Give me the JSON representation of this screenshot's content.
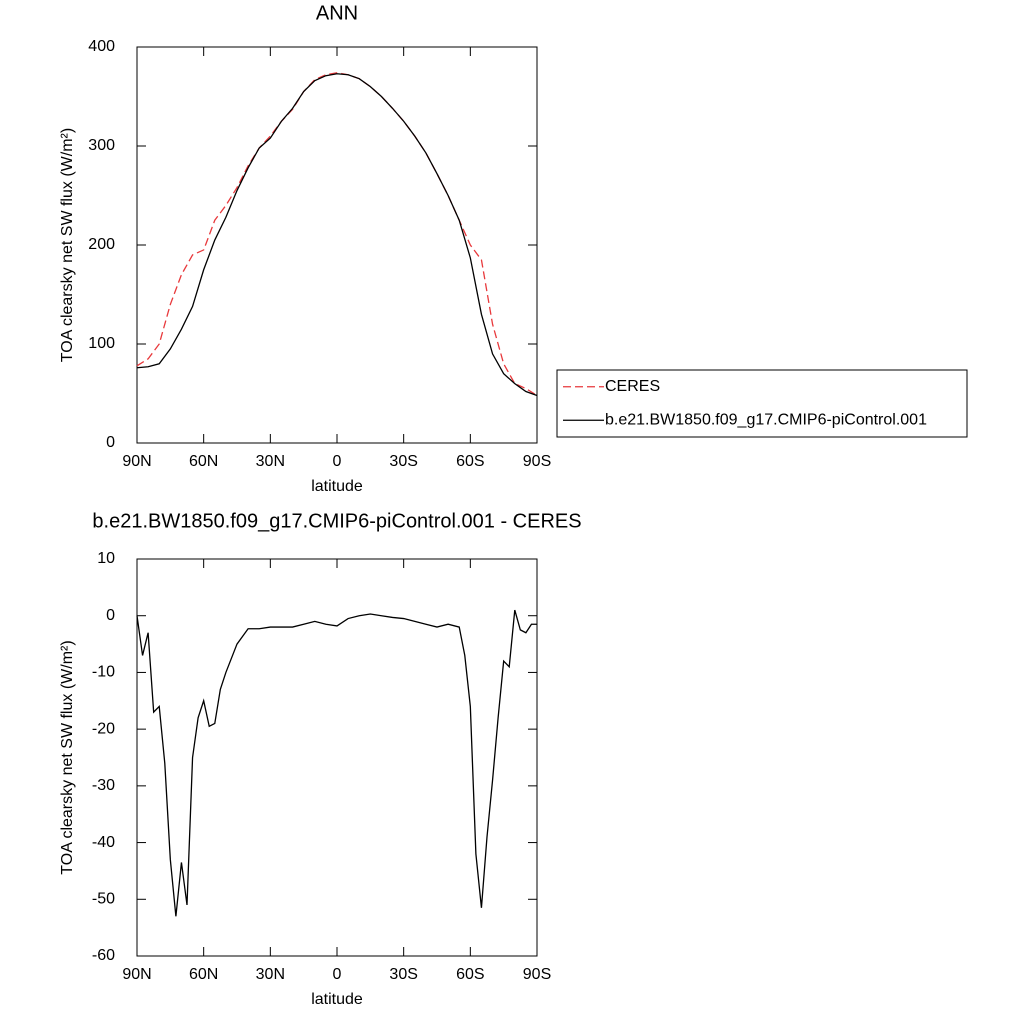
{
  "chart_data": [
    {
      "type": "line",
      "title": "ANN",
      "xlabel": "latitude",
      "ylabel": "TOA clearsky net SW flux (W/m²)",
      "x": [
        90,
        85,
        80,
        75,
        70,
        65,
        60,
        55,
        50,
        45,
        40,
        35,
        30,
        25,
        20,
        15,
        10,
        5,
        0,
        -5,
        -10,
        -15,
        -20,
        -25,
        -30,
        -35,
        -40,
        -45,
        -50,
        -55,
        -60,
        -65,
        -70,
        -75,
        -80,
        -85,
        -90
      ],
      "xlim": [
        90,
        -90
      ],
      "xticks": [
        {
          "value": 90,
          "label": "90N"
        },
        {
          "value": 60,
          "label": "60N"
        },
        {
          "value": 30,
          "label": "30N"
        },
        0,
        {
          "value": -30,
          "label": "30S"
        },
        {
          "value": -60,
          "label": "60S"
        },
        {
          "value": -90,
          "label": "90S"
        }
      ],
      "ylim": [
        0,
        400
      ],
      "yticks": [
        0,
        100,
        200,
        300,
        400
      ],
      "legend": "right",
      "series": [
        {
          "name": "CERES",
          "color": "#e8393c",
          "style": "dashed",
          "values": [
            78,
            85,
            100,
            140,
            170,
            190,
            195,
            225,
            240,
            258,
            280,
            298,
            310,
            325,
            337,
            355,
            367,
            372,
            374,
            372,
            368,
            360,
            350,
            338,
            325,
            310,
            293,
            272,
            250,
            225,
            200,
            185,
            120,
            80,
            60,
            55,
            48
          ]
        },
        {
          "name": "b.e21.BW1850.f09_g17.CMIP6-piControl.001",
          "color": "#000000",
          "style": "solid",
          "values": [
            76,
            77,
            80,
            95,
            115,
            138,
            175,
            205,
            228,
            255,
            278,
            298,
            308,
            325,
            338,
            355,
            366,
            371,
            373,
            372,
            368,
            360,
            350,
            338,
            325,
            310,
            293,
            272,
            250,
            225,
            187,
            130,
            90,
            70,
            60,
            52,
            48
          ]
        }
      ]
    },
    {
      "type": "line",
      "title": "b.e21.BW1850.f09_g17.CMIP6-piControl.001 - CERES",
      "xlabel": "latitude",
      "ylabel": "TOA clearsky net SW flux (W/m²)",
      "x": [
        90,
        87.5,
        85,
        82.5,
        80,
        77.5,
        75,
        72.5,
        70,
        67.5,
        65,
        62.5,
        60,
        57.5,
        55,
        52.5,
        50,
        45,
        40,
        35,
        30,
        25,
        20,
        15,
        10,
        5,
        0,
        -5,
        -10,
        -15,
        -20,
        -25,
        -30,
        -35,
        -40,
        -45,
        -50,
        -55,
        -57.5,
        -60,
        -62.5,
        -65,
        -67.5,
        -70,
        -72.5,
        -75,
        -77.5,
        -80,
        -82.5,
        -85,
        -87.5,
        -90
      ],
      "xlim": [
        90,
        -90
      ],
      "xticks": [
        {
          "value": 90,
          "label": "90N"
        },
        {
          "value": 60,
          "label": "60N"
        },
        {
          "value": 30,
          "label": "30N"
        },
        0,
        {
          "value": -30,
          "label": "30S"
        },
        {
          "value": -60,
          "label": "60S"
        },
        {
          "value": -90,
          "label": "90S"
        }
      ],
      "ylim": [
        -60,
        10
      ],
      "yticks": [
        -60,
        -50,
        -40,
        -30,
        -20,
        -10,
        0,
        10
      ],
      "series": [
        {
          "color": "#000000",
          "style": "solid",
          "values": [
            0,
            -7,
            -3,
            -17,
            -16,
            -26,
            -43,
            -53,
            -43.5,
            -51,
            -25,
            -18,
            -15,
            -19.5,
            -19,
            -13,
            -10,
            -5,
            -2.3,
            -2.3,
            -2,
            -2,
            -2,
            -1.5,
            -1,
            -1.5,
            -1.8,
            -0.5,
            0,
            0.3,
            0,
            -0.3,
            -0.5,
            -1,
            -1.5,
            -2,
            -1.5,
            -2,
            -7,
            -16,
            -42,
            -51.5,
            -39,
            -29,
            -18,
            -8,
            -9,
            1,
            -2.5,
            -3,
            -1.5,
            -1.5
          ]
        }
      ]
    }
  ]
}
